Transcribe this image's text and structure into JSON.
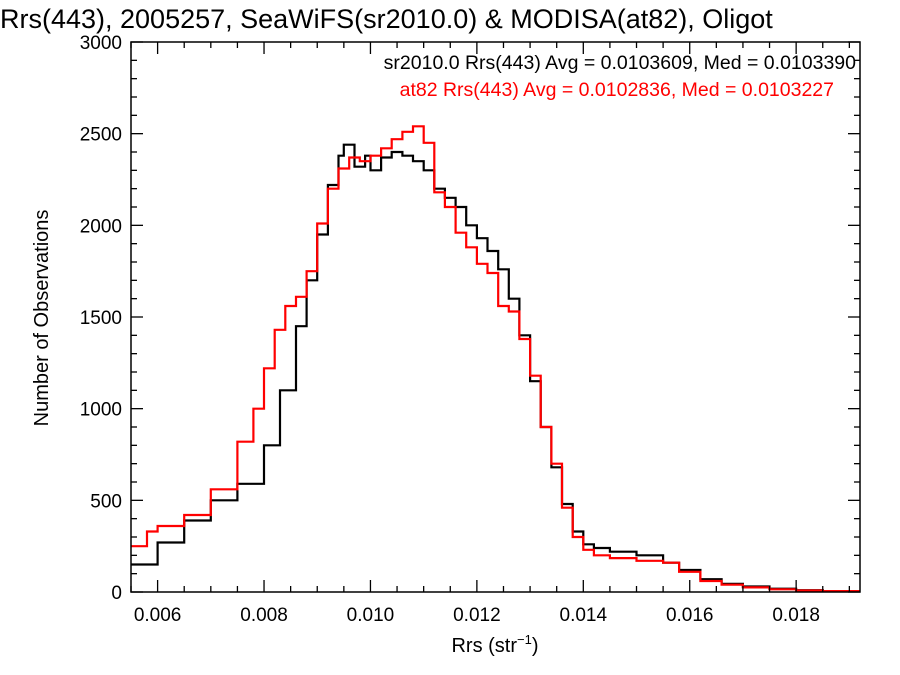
{
  "chart_data": {
    "type": "line",
    "title": "Rrs(443), 2005257, SeaWiFS(sr2010.0) & MODISA(at82), Oligot",
    "xlabel": "Rrs (str",
    "xlabel_sup": "−1",
    "xlabel_close": ")",
    "ylabel": "Number of Observations",
    "xlim": [
      0.0055,
      0.0192
    ],
    "ylim": [
      0,
      3000
    ],
    "xticks": [
      0.006,
      0.008,
      0.01,
      0.012,
      0.014,
      0.016,
      0.018
    ],
    "xtick_labels": [
      "0.006",
      "0.008",
      "0.010",
      "0.012",
      "0.014",
      "0.016",
      "0.018"
    ],
    "yticks": [
      0,
      500,
      1000,
      1500,
      2000,
      2500,
      3000
    ],
    "ytick_labels": [
      "0",
      "500",
      "1000",
      "1500",
      "2000",
      "2500",
      "3000"
    ],
    "grid": false,
    "legend_position": "top-right",
    "series": [
      {
        "name": "sr2010.0 Rrs(443) Avg = 0.0103609, Med = 0.0103390",
        "color": "#000000",
        "step": true,
        "x": [
          0.0055,
          0.006,
          0.0065,
          0.007,
          0.0075,
          0.008,
          0.0083,
          0.0086,
          0.0088,
          0.009,
          0.0092,
          0.0094,
          0.0095,
          0.0097,
          0.0099,
          0.01,
          0.0102,
          0.0104,
          0.0106,
          0.0108,
          0.011,
          0.0112,
          0.0114,
          0.0116,
          0.0118,
          0.012,
          0.0122,
          0.0124,
          0.0126,
          0.0128,
          0.013,
          0.0132,
          0.0134,
          0.0136,
          0.0138,
          0.014,
          0.0142,
          0.0145,
          0.015,
          0.0155,
          0.0158,
          0.0162,
          0.0166,
          0.017,
          0.0175,
          0.018,
          0.0185,
          0.0192
        ],
        "y": [
          150,
          270,
          390,
          500,
          590,
          800,
          1100,
          1450,
          1700,
          1950,
          2220,
          2380,
          2440,
          2320,
          2380,
          2300,
          2370,
          2400,
          2380,
          2350,
          2300,
          2200,
          2150,
          2100,
          2000,
          1930,
          1860,
          1760,
          1600,
          1400,
          1150,
          900,
          680,
          480,
          330,
          260,
          240,
          220,
          200,
          160,
          120,
          70,
          45,
          30,
          18,
          10,
          5,
          3
        ]
      },
      {
        "name": "at82 Rrs(443) Avg = 0.0102836, Med = 0.0103227",
        "color": "#ff0000",
        "step": true,
        "x": [
          0.0055,
          0.0058,
          0.006,
          0.0065,
          0.007,
          0.0075,
          0.0078,
          0.008,
          0.0082,
          0.0084,
          0.0086,
          0.0088,
          0.009,
          0.0092,
          0.0094,
          0.0096,
          0.0098,
          0.01,
          0.0102,
          0.0104,
          0.0106,
          0.0108,
          0.011,
          0.0112,
          0.0114,
          0.0116,
          0.0118,
          0.012,
          0.0122,
          0.0124,
          0.0126,
          0.0128,
          0.013,
          0.0132,
          0.0134,
          0.0136,
          0.0138,
          0.014,
          0.0142,
          0.0145,
          0.015,
          0.0155,
          0.0158,
          0.0162,
          0.0166,
          0.017,
          0.0175,
          0.018,
          0.0185,
          0.0192
        ],
        "y": [
          250,
          330,
          360,
          420,
          560,
          820,
          1000,
          1220,
          1430,
          1560,
          1610,
          1750,
          2010,
          2200,
          2310,
          2370,
          2350,
          2380,
          2420,
          2470,
          2510,
          2540,
          2450,
          2180,
          2100,
          1960,
          1880,
          1790,
          1740,
          1560,
          1530,
          1380,
          1180,
          900,
          700,
          460,
          300,
          230,
          200,
          185,
          170,
          160,
          110,
          60,
          40,
          25,
          15,
          8,
          5,
          3
        ]
      }
    ]
  }
}
